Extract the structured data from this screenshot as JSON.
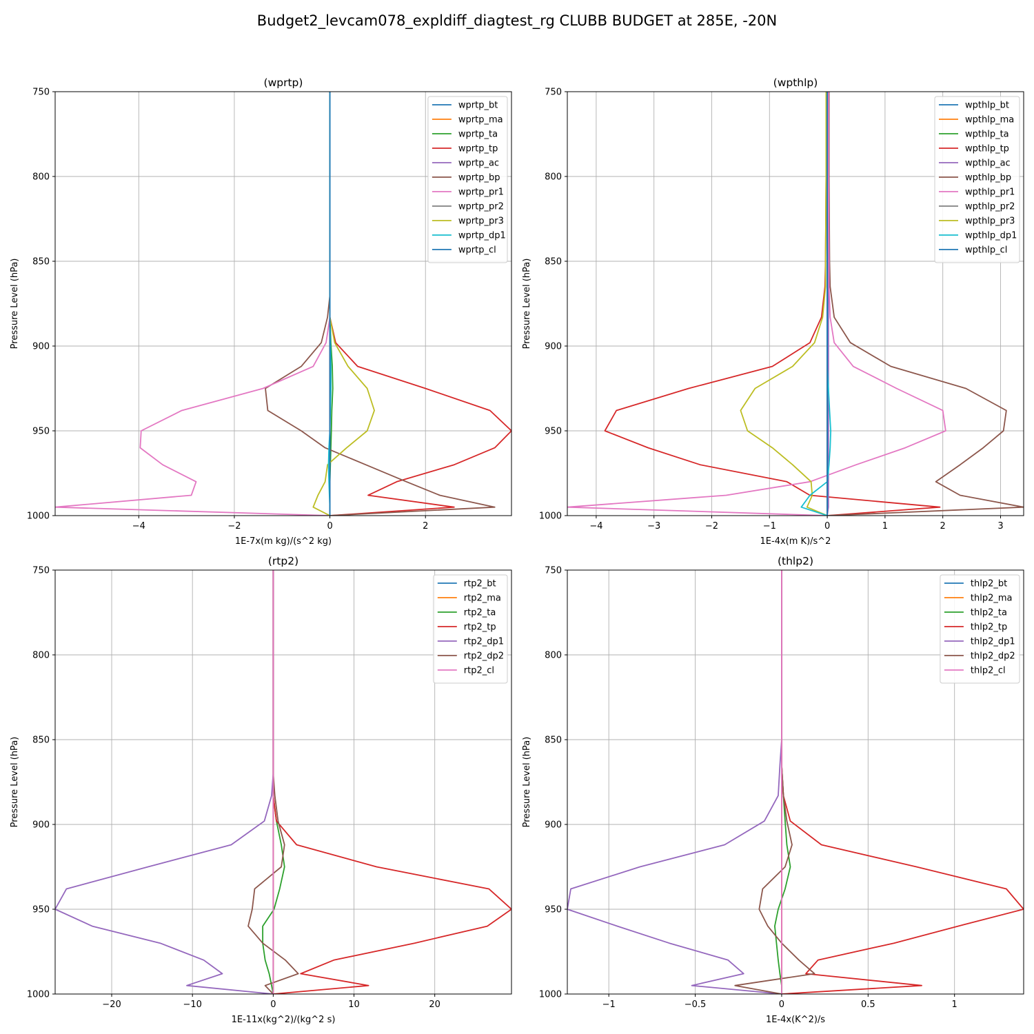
{
  "figure": {
    "suptitle": "Budget2_levcam078_expldiff_diagtest_rg CLUBB BUDGET at 285E, -20N"
  },
  "colors": [
    "#1f77b4",
    "#ff7f0e",
    "#2ca02c",
    "#d62728",
    "#9467bd",
    "#8c564b",
    "#e377c2",
    "#7f7f7f",
    "#bcbd22",
    "#17becf",
    "#1f77b4"
  ],
  "chart_data": [
    {
      "type": "line",
      "title": "(wprtp)",
      "xlabel": "1E-7x(m kg)/(s^2 kg)",
      "ylabel": "Pressure Level (hPa)",
      "xlim": [
        -5.75,
        3.8
      ],
      "ylim": [
        1000,
        750
      ],
      "xticks": [
        -4,
        -2,
        0,
        2
      ],
      "yticks": [
        750,
        800,
        850,
        900,
        950,
        1000
      ],
      "grid": true,
      "legend": "top-right",
      "levels": [
        750,
        800,
        850,
        870,
        883,
        898,
        912,
        925,
        938,
        950,
        960,
        970,
        980,
        988,
        995,
        1000
      ],
      "series": [
        {
          "name": "wprtp_bt",
          "values": [
            0,
            0,
            0,
            0,
            0,
            0,
            0,
            0,
            0,
            0,
            0,
            0,
            0,
            0,
            0,
            0
          ]
        },
        {
          "name": "wprtp_ma",
          "values": [
            0,
            0,
            0,
            0,
            0,
            0,
            0,
            0,
            0,
            0,
            0,
            0,
            0,
            0,
            0,
            0
          ]
        },
        {
          "name": "wprtp_ta",
          "values": [
            0,
            0,
            0,
            0,
            0,
            0.02,
            0.05,
            0.06,
            0.04,
            0.03,
            0.02,
            0.01,
            0,
            0,
            0,
            0
          ]
        },
        {
          "name": "wprtp_tp",
          "values": [
            0,
            0,
            0,
            0,
            0,
            0.12,
            0.58,
            2.0,
            3.35,
            3.8,
            3.45,
            2.6,
            1.4,
            0.8,
            2.6,
            0
          ]
        },
        {
          "name": "wprtp_ac",
          "values": [
            0,
            0,
            0,
            0,
            0,
            0,
            0,
            0,
            0,
            0,
            0,
            0,
            0,
            0,
            0,
            0
          ]
        },
        {
          "name": "wprtp_bp",
          "values": [
            0,
            0,
            0,
            0,
            -0.05,
            -0.18,
            -0.6,
            -1.35,
            -1.3,
            -0.6,
            -0.1,
            0.75,
            1.6,
            2.3,
            3.45,
            0
          ]
        },
        {
          "name": "wprtp_pr1",
          "values": [
            0,
            0,
            0,
            0,
            0,
            -0.08,
            -0.35,
            -1.4,
            -3.1,
            -3.95,
            -3.97,
            -3.5,
            -2.8,
            -2.9,
            -5.75,
            0
          ]
        },
        {
          "name": "wprtp_pr2",
          "values": [
            0,
            0,
            0,
            0,
            0,
            0,
            0,
            0,
            0,
            0,
            0,
            0,
            0,
            0,
            0,
            0
          ]
        },
        {
          "name": "wprtp_pr3",
          "values": [
            0,
            0,
            0,
            0,
            0,
            0.1,
            0.38,
            0.78,
            0.93,
            0.78,
            0.35,
            -0.05,
            -0.1,
            -0.25,
            -0.35,
            0
          ]
        },
        {
          "name": "wprtp_dp1",
          "values": [
            0,
            0,
            0,
            0,
            0,
            0.01,
            0.02,
            0.02,
            0.01,
            0,
            -0.02,
            -0.03,
            -0.02,
            -0.01,
            0,
            0
          ]
        },
        {
          "name": "wprtp_cl",
          "values": [
            0,
            0,
            0,
            0,
            0,
            0,
            0,
            0,
            0,
            0,
            0,
            0,
            0,
            0,
            0,
            0
          ]
        }
      ]
    },
    {
      "type": "line",
      "title": "(wpthlp)",
      "xlabel": "1E-4x(m K)/s^2",
      "ylabel": "Pressure Level (hPa)",
      "xlim": [
        -4.5,
        3.4
      ],
      "ylim": [
        1000,
        750
      ],
      "xticks": [
        -4,
        -3,
        -2,
        -1,
        0,
        1,
        2,
        3
      ],
      "yticks": [
        750,
        800,
        850,
        900,
        950,
        1000
      ],
      "grid": true,
      "legend": "top-right",
      "levels": [
        750,
        800,
        850,
        865,
        883,
        898,
        912,
        925,
        938,
        950,
        960,
        970,
        980,
        988,
        995,
        1000
      ],
      "series": [
        {
          "name": "wpthlp_bt",
          "values": [
            0,
            0,
            0,
            0,
            0,
            0,
            0,
            0,
            0,
            0,
            0,
            0,
            0,
            0,
            0,
            0
          ]
        },
        {
          "name": "wpthlp_ma",
          "values": [
            0,
            0,
            0,
            0,
            0,
            0,
            0,
            0,
            0,
            0,
            0,
            0,
            0,
            0,
            0,
            0
          ]
        },
        {
          "name": "wpthlp_ta",
          "values": [
            0,
            0,
            0,
            0,
            0,
            0,
            0,
            0,
            0,
            0,
            0,
            0,
            0,
            0,
            0,
            0
          ]
        },
        {
          "name": "wpthlp_tp",
          "values": [
            0,
            -0.02,
            -0.03,
            -0.04,
            -0.1,
            -0.3,
            -0.95,
            -2.4,
            -3.65,
            -3.85,
            -3.1,
            -2.2,
            -0.7,
            -0.3,
            1.95,
            0
          ]
        },
        {
          "name": "wpthlp_ac",
          "values": [
            0.02,
            0.02,
            0.02,
            0.02,
            0.02,
            0.02,
            0.02,
            0.02,
            0.02,
            0.02,
            0.02,
            0.02,
            0.02,
            0.02,
            0.02,
            0
          ]
        },
        {
          "name": "wpthlp_bp",
          "values": [
            0.03,
            0.03,
            0.04,
            0.05,
            0.12,
            0.4,
            1.1,
            2.4,
            3.1,
            3.05,
            2.7,
            2.3,
            1.88,
            2.3,
            3.4,
            0
          ]
        },
        {
          "name": "wpthlp_pr1",
          "values": [
            0.02,
            0.02,
            0.03,
            0.03,
            0.05,
            0.12,
            0.45,
            1.2,
            2.0,
            2.05,
            1.35,
            0.5,
            -0.3,
            -1.75,
            -4.5,
            0
          ]
        },
        {
          "name": "wpthlp_pr2",
          "values": [
            0,
            0,
            0,
            0,
            0,
            0,
            0,
            0,
            0,
            0,
            0,
            0,
            0,
            0,
            0,
            0
          ]
        },
        {
          "name": "wpthlp_pr3",
          "values": [
            -0.02,
            -0.02,
            -0.03,
            -0.03,
            -0.08,
            -0.22,
            -0.6,
            -1.25,
            -1.5,
            -1.38,
            -0.95,
            -0.6,
            -0.28,
            -0.26,
            -0.35,
            0
          ]
        },
        {
          "name": "wpthlp_dp1",
          "values": [
            0,
            0,
            0,
            0,
            0,
            0,
            0,
            0.02,
            0.04,
            0.06,
            0.05,
            0.03,
            0,
            -0.3,
            -0.45,
            0
          ]
        },
        {
          "name": "wpthlp_cl",
          "values": [
            0,
            0,
            0,
            0,
            0,
            0,
            0,
            0,
            0,
            0,
            0,
            0,
            0,
            0,
            0,
            0
          ]
        }
      ]
    },
    {
      "type": "line",
      "title": "(rtp2)",
      "xlabel": "1E-11x(kg^2)/(kg^2 s)",
      "ylabel": "Pressure Level (hPa)",
      "xlim": [
        -27,
        29.5
      ],
      "ylim": [
        1000,
        750
      ],
      "xticks": [
        -20,
        -10,
        0,
        10,
        20
      ],
      "yticks": [
        750,
        800,
        850,
        900,
        950,
        1000
      ],
      "grid": true,
      "legend": "top-right",
      "levels": [
        750,
        800,
        850,
        870,
        883,
        898,
        912,
        925,
        938,
        950,
        960,
        970,
        980,
        988,
        995,
        1000
      ],
      "series": [
        {
          "name": "rtp2_bt",
          "values": [
            0,
            0,
            0,
            0,
            0,
            0,
            0,
            0,
            0,
            0,
            0,
            0,
            0,
            0,
            0,
            0
          ]
        },
        {
          "name": "rtp2_ma",
          "values": [
            0,
            0,
            0,
            0,
            0,
            0,
            0,
            0,
            0,
            0,
            0,
            0,
            0,
            0,
            0,
            0
          ]
        },
        {
          "name": "rtp2_ta",
          "values": [
            0,
            0,
            0,
            0,
            0,
            0.4,
            1.0,
            1.4,
            0.8,
            0.1,
            -1.3,
            -1.3,
            -1.0,
            -0.5,
            -0.2,
            0
          ]
        },
        {
          "name": "rtp2_tp",
          "values": [
            0,
            0,
            0,
            0,
            0,
            0.4,
            2.9,
            12.8,
            26.7,
            29.5,
            26.5,
            17.5,
            7.5,
            3.4,
            11.8,
            0
          ]
        },
        {
          "name": "rtp2_dp1",
          "values": [
            0,
            0,
            0,
            0,
            -0.2,
            -1.1,
            -5.2,
            -15.5,
            -25.6,
            -27,
            -22.4,
            -14,
            -8.6,
            -6.3,
            -10.7,
            0
          ]
        },
        {
          "name": "rtp2_dp2",
          "values": [
            0,
            0,
            0,
            0,
            0.2,
            0.6,
            1.4,
            1.0,
            -2.3,
            -2.6,
            -3.1,
            -1.3,
            1.5,
            3.1,
            -1.0,
            0
          ]
        },
        {
          "name": "rtp2_cl",
          "values": [
            0,
            0,
            0,
            0,
            0,
            0,
            0,
            0,
            0,
            0,
            0,
            0,
            0,
            0,
            0,
            0
          ]
        }
      ]
    },
    {
      "type": "line",
      "title": "(thlp2)",
      "xlabel": "1E-4x(K^2)/s",
      "ylabel": "Pressure Level (hPa)",
      "xlim": [
        -1.24,
        1.4
      ],
      "ylim": [
        1000,
        750
      ],
      "xticks": [
        -1.0,
        -0.5,
        0.0,
        0.5,
        1.0
      ],
      "yticks": [
        750,
        800,
        850,
        900,
        950,
        1000
      ],
      "grid": true,
      "legend": "top-right",
      "levels": [
        750,
        800,
        850,
        865,
        883,
        898,
        912,
        925,
        938,
        950,
        960,
        970,
        980,
        988,
        995,
        1000
      ],
      "series": [
        {
          "name": "thlp2_bt",
          "values": [
            0,
            0,
            0,
            0,
            0,
            0,
            0,
            0,
            0,
            0,
            0,
            0,
            0,
            0,
            0,
            0
          ]
        },
        {
          "name": "thlp2_ma",
          "values": [
            0,
            0,
            0,
            0,
            0,
            0,
            0,
            0,
            0,
            0,
            0,
            0,
            0,
            0,
            0,
            0
          ]
        },
        {
          "name": "thlp2_ta",
          "values": [
            0,
            0,
            0,
            0,
            0.01,
            0.02,
            0.03,
            0.05,
            0.02,
            -0.02,
            -0.04,
            -0.03,
            -0.02,
            -0.01,
            0,
            0
          ]
        },
        {
          "name": "thlp2_tp",
          "values": [
            0,
            0,
            0,
            0,
            0.01,
            0.05,
            0.23,
            0.78,
            1.3,
            1.4,
            1.02,
            0.65,
            0.21,
            0.14,
            0.81,
            0
          ]
        },
        {
          "name": "thlp2_dp1",
          "values": [
            0,
            0,
            0,
            -0.01,
            -0.02,
            -0.1,
            -0.33,
            -0.82,
            -1.22,
            -1.24,
            -0.95,
            -0.65,
            -0.31,
            -0.22,
            -0.52,
            0
          ]
        },
        {
          "name": "thlp2_dp2",
          "values": [
            0,
            0,
            0,
            0,
            0.01,
            0.03,
            0.06,
            0.02,
            -0.11,
            -0.13,
            -0.08,
            0,
            0.1,
            0.19,
            -0.27,
            0
          ]
        },
        {
          "name": "thlp2_cl",
          "values": [
            0,
            0,
            0,
            0,
            0,
            0,
            0,
            0,
            0,
            0,
            0,
            0,
            0,
            0,
            0,
            0
          ]
        }
      ]
    }
  ]
}
